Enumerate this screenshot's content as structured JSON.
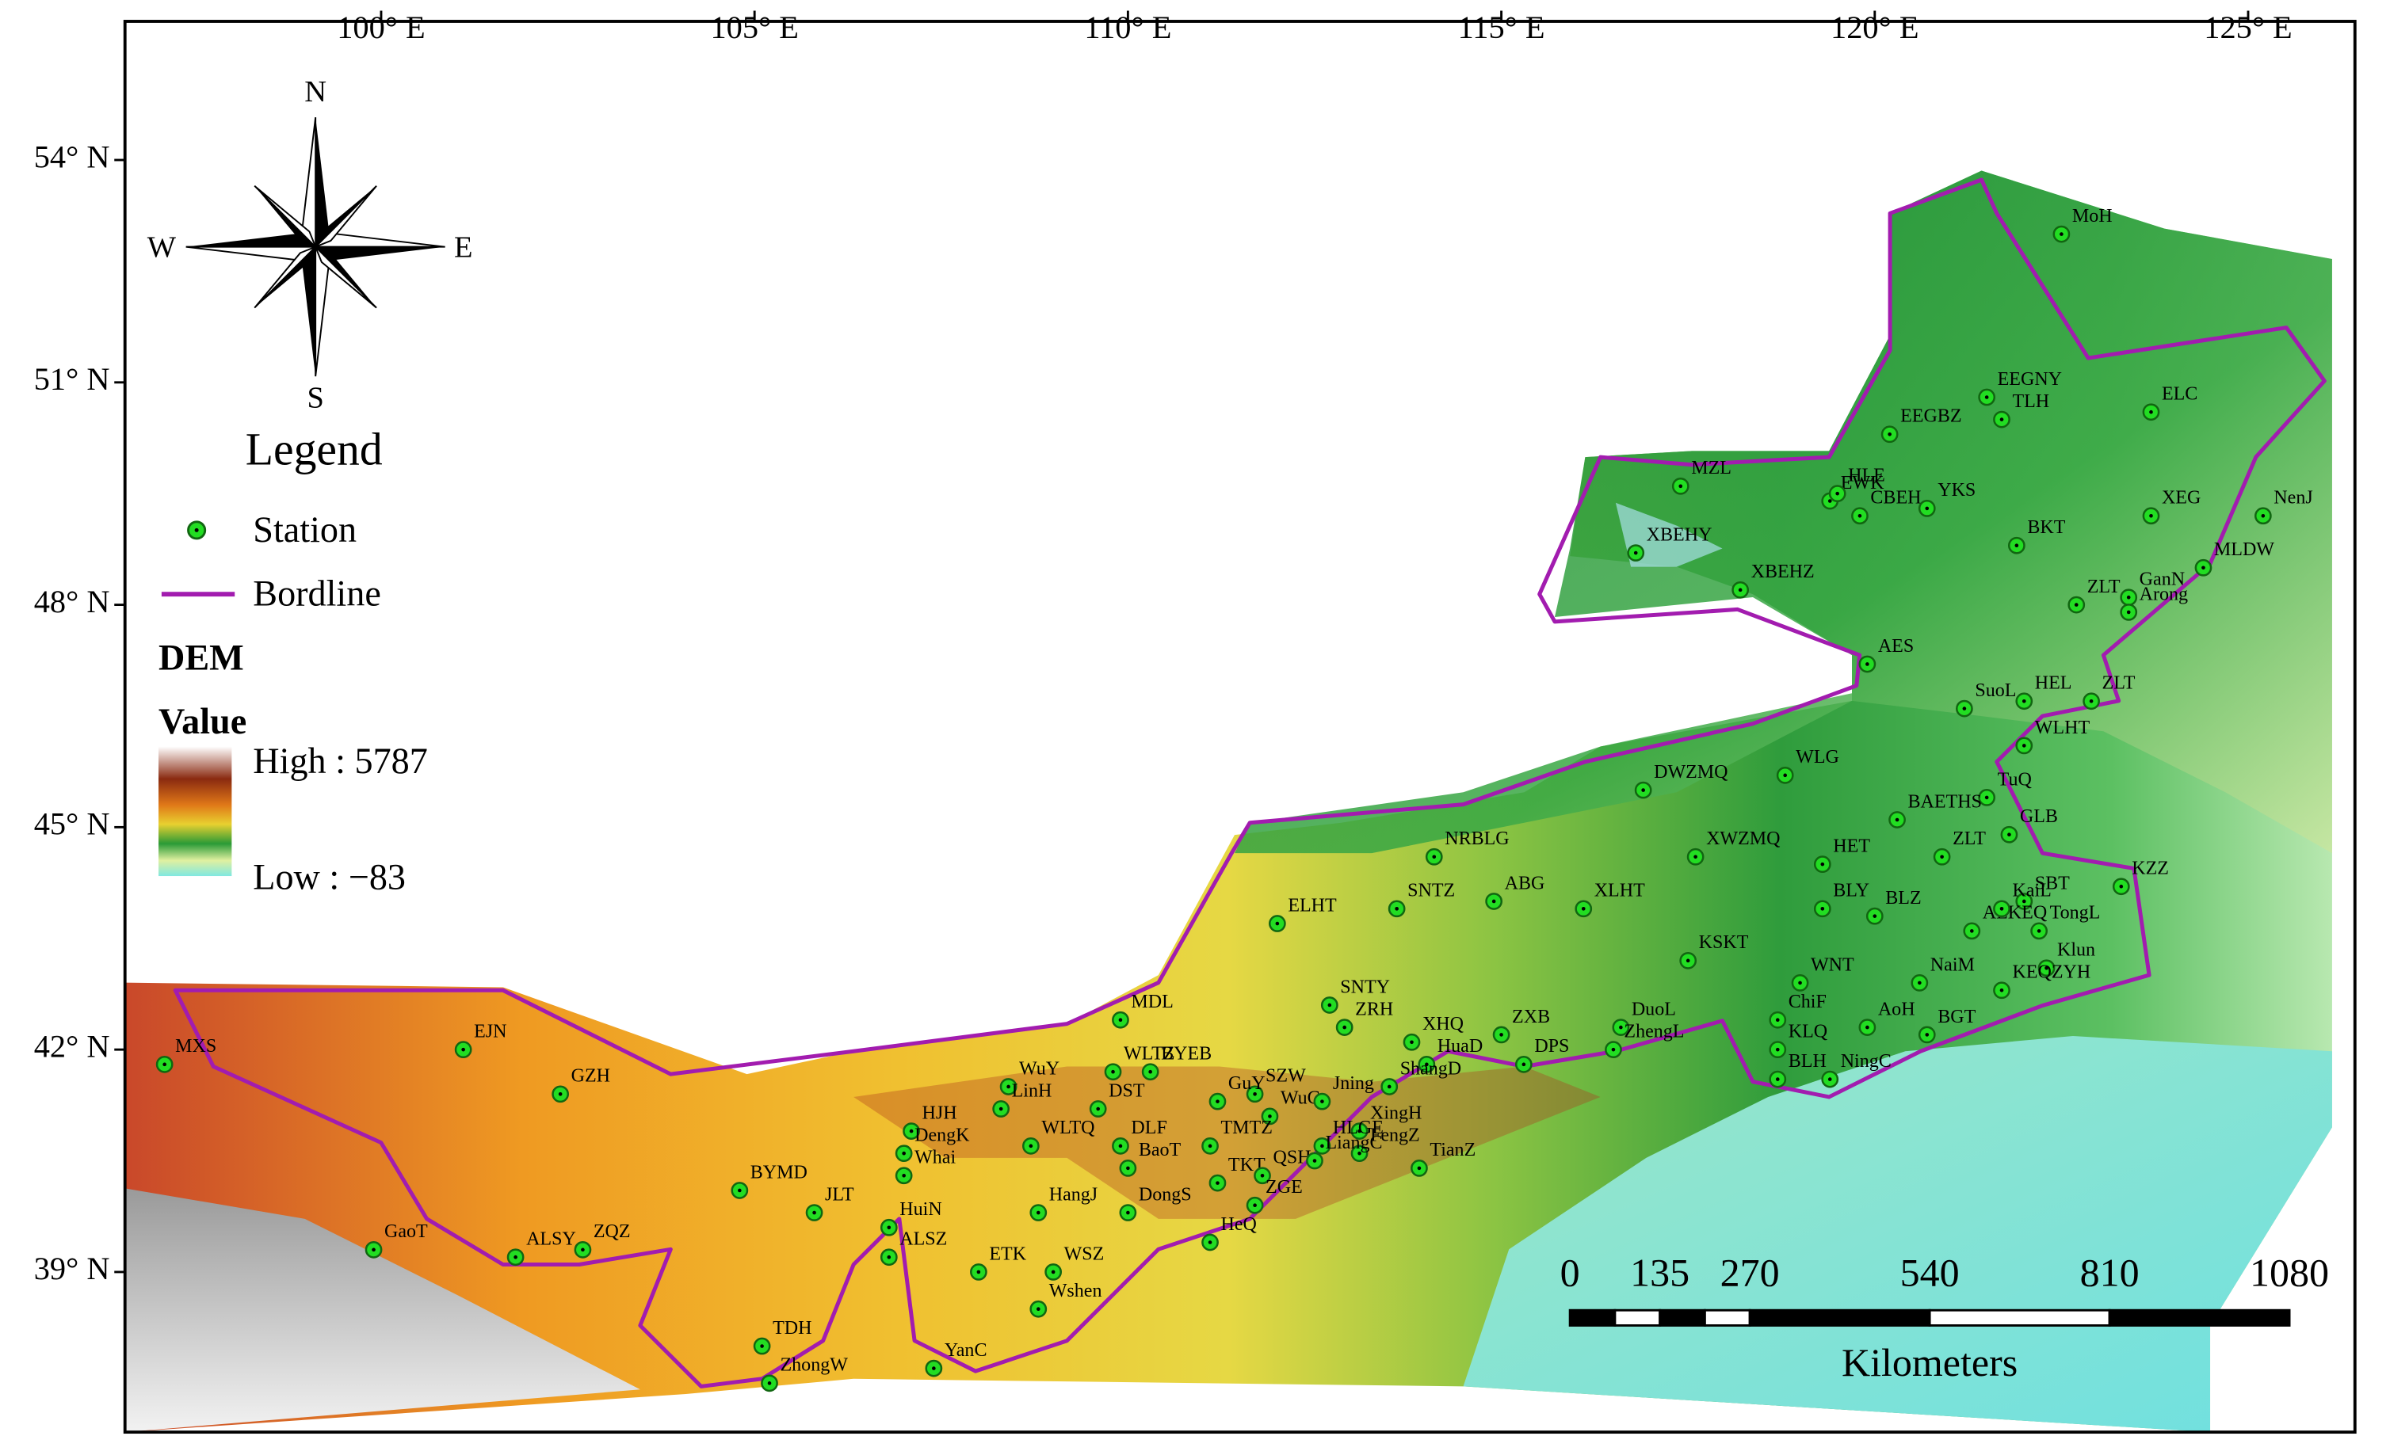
{
  "axes": {
    "xlim": [
      96.57,
      126.43
    ],
    "ylim": [
      36.84,
      55.87
    ],
    "xticks": [
      {
        "value": 100,
        "label": "100° E"
      },
      {
        "value": 105,
        "label": "105° E"
      },
      {
        "value": 110,
        "label": "110° E"
      },
      {
        "value": 115,
        "label": "115° E"
      },
      {
        "value": 120,
        "label": "120° E"
      },
      {
        "value": 125,
        "label": "125° E"
      }
    ],
    "yticks": [
      {
        "value": 54,
        "label": "54° N"
      },
      {
        "value": 51,
        "label": "51° N"
      },
      {
        "value": 48,
        "label": "48° N"
      },
      {
        "value": 45,
        "label": "45° N"
      },
      {
        "value": 42,
        "label": "42° N"
      },
      {
        "value": 39,
        "label": "39° N"
      }
    ]
  },
  "compass": {
    "north": "N",
    "south": "S",
    "east": "E",
    "west": "W"
  },
  "legend": {
    "title": "Legend",
    "station": "Station",
    "border": "Bordline",
    "dem_title": "DEM",
    "dem_subtitle": "Value",
    "high": "High : 5787",
    "low": "Low : −83"
  },
  "scale_bar": {
    "ticks": [
      0,
      135,
      270,
      540,
      810,
      1080
    ],
    "unit": "Kilometers"
  },
  "stations": [
    {
      "name": "MoH",
      "lon": 122.5,
      "lat": 53.0
    },
    {
      "name": "EEGNY",
      "lon": 121.5,
      "lat": 50.8
    },
    {
      "name": "TLH",
      "lon": 121.7,
      "lat": 50.5
    },
    {
      "name": "EEGBZ",
      "lon": 120.2,
      "lat": 50.3
    },
    {
      "name": "ELC",
      "lon": 123.7,
      "lat": 50.6
    },
    {
      "name": "MZL",
      "lon": 117.4,
      "lat": 49.6
    },
    {
      "name": "EWK",
      "lon": 119.4,
      "lat": 49.4
    },
    {
      "name": "HLE",
      "lon": 119.5,
      "lat": 49.5
    },
    {
      "name": "CBEH",
      "lon": 119.8,
      "lat": 49.2
    },
    {
      "name": "YKS",
      "lon": 120.7,
      "lat": 49.3
    },
    {
      "name": "XEG",
      "lon": 123.7,
      "lat": 49.2
    },
    {
      "name": "NenJ",
      "lon": 125.2,
      "lat": 49.2
    },
    {
      "name": "XBEHY",
      "lon": 116.8,
      "lat": 48.7
    },
    {
      "name": "BKT",
      "lon": 121.9,
      "lat": 48.8
    },
    {
      "name": "MLDW",
      "lon": 124.4,
      "lat": 48.5
    },
    {
      "name": "XBEHZ",
      "lon": 118.2,
      "lat": 48.2
    },
    {
      "name": "ZLT",
      "lon": 122.7,
      "lat": 48.0
    },
    {
      "name": "GanN",
      "lon": 123.4,
      "lat": 48.1
    },
    {
      "name": "Arong",
      "lon": 123.4,
      "lat": 47.9
    },
    {
      "name": "AES",
      "lon": 119.9,
      "lat": 47.2
    },
    {
      "name": "SuoL",
      "lon": 121.2,
      "lat": 46.6
    },
    {
      "name": "HEL",
      "lon": 122.0,
      "lat": 46.7
    },
    {
      "name": "ZLT",
      "lon": 122.9,
      "lat": 46.7
    },
    {
      "name": "WLHT",
      "lon": 122.0,
      "lat": 46.1
    },
    {
      "name": "DWZMQ",
      "lon": 116.9,
      "lat": 45.5
    },
    {
      "name": "WLG",
      "lon": 118.8,
      "lat": 45.7
    },
    {
      "name": "TuQ",
      "lon": 121.5,
      "lat": 45.4
    },
    {
      "name": "BAETHS",
      "lon": 120.3,
      "lat": 45.1
    },
    {
      "name": "GLB",
      "lon": 121.8,
      "lat": 44.9
    },
    {
      "name": "XWZMQ",
      "lon": 117.6,
      "lat": 44.6
    },
    {
      "name": "HET",
      "lon": 119.3,
      "lat": 44.5
    },
    {
      "name": "ZLT",
      "lon": 120.9,
      "lat": 44.6
    },
    {
      "name": "NRBLG",
      "lon": 114.1,
      "lat": 44.6
    },
    {
      "name": "KZZ",
      "lon": 123.3,
      "lat": 44.2
    },
    {
      "name": "SBT",
      "lon": 122.0,
      "lat": 44.0
    },
    {
      "name": "ELHT",
      "lon": 112.0,
      "lat": 43.7
    },
    {
      "name": "SNTZ",
      "lon": 113.6,
      "lat": 43.9
    },
    {
      "name": "ABG",
      "lon": 114.9,
      "lat": 44.0
    },
    {
      "name": "XLHT",
      "lon": 116.1,
      "lat": 43.9
    },
    {
      "name": "BLZ",
      "lon": 120.0,
      "lat": 43.8
    },
    {
      "name": "ALKEQ",
      "lon": 121.3,
      "lat": 43.6
    },
    {
      "name": "KaiL",
      "lon": 121.7,
      "lat": 43.9
    },
    {
      "name": "TongL",
      "lon": 122.2,
      "lat": 43.6
    },
    {
      "name": "BLY",
      "lon": 119.3,
      "lat": 43.9
    },
    {
      "name": "KSKT",
      "lon": 117.5,
      "lat": 43.2
    },
    {
      "name": "WNT",
      "lon": 119.0,
      "lat": 42.9
    },
    {
      "name": "NaiM",
      "lon": 120.6,
      "lat": 42.9
    },
    {
      "name": "Klun",
      "lon": 122.3,
      "lat": 43.1
    },
    {
      "name": "KEQZYH",
      "lon": 121.7,
      "lat": 42.8
    },
    {
      "name": "BGT",
      "lon": 120.7,
      "lat": 42.2
    },
    {
      "name": "AoH",
      "lon": 119.9,
      "lat": 42.3
    },
    {
      "name": "ChiF",
      "lon": 118.7,
      "lat": 42.4
    },
    {
      "name": "KLQ",
      "lon": 118.7,
      "lat": 42.0
    },
    {
      "name": "BLH",
      "lon": 118.7,
      "lat": 41.6
    },
    {
      "name": "NingC",
      "lon": 119.4,
      "lat": 41.6
    },
    {
      "name": "MDL",
      "lon": 109.9,
      "lat": 42.4
    },
    {
      "name": "SNTY",
      "lon": 112.7,
      "lat": 42.6
    },
    {
      "name": "ZRH",
      "lon": 112.9,
      "lat": 42.3
    },
    {
      "name": "XHQ",
      "lon": 113.8,
      "lat": 42.1
    },
    {
      "name": "ZXB",
      "lon": 115.0,
      "lat": 42.2
    },
    {
      "name": "DuoL",
      "lon": 116.6,
      "lat": 42.3
    },
    {
      "name": "DPS",
      "lon": 115.3,
      "lat": 41.8
    },
    {
      "name": "ZhengL",
      "lon": 116.5,
      "lat": 42.0
    },
    {
      "name": "HuaD",
      "lon": 114.0,
      "lat": 41.8
    },
    {
      "name": "ShangD",
      "lon": 113.5,
      "lat": 41.5
    },
    {
      "name": "MXS",
      "lon": 97.1,
      "lat": 41.8
    },
    {
      "name": "EJN",
      "lon": 101.1,
      "lat": 42.0
    },
    {
      "name": "GZH",
      "lon": 102.4,
      "lat": 41.4
    },
    {
      "name": "WLTZ",
      "lon": 109.8,
      "lat": 41.7
    },
    {
      "name": "BYEB",
      "lon": 110.3,
      "lat": 41.7
    },
    {
      "name": "WuY",
      "lon": 108.4,
      "lat": 41.5
    },
    {
      "name": "SZW",
      "lon": 111.7,
      "lat": 41.4
    },
    {
      "name": "DST",
      "lon": 109.6,
      "lat": 41.2
    },
    {
      "name": "GuY",
      "lon": 111.2,
      "lat": 41.3
    },
    {
      "name": "HJH",
      "lon": 107.1,
      "lat": 40.9
    },
    {
      "name": "LinH",
      "lon": 108.3,
      "lat": 41.2
    },
    {
      "name": "WuC",
      "lon": 111.9,
      "lat": 41.1
    },
    {
      "name": "Jning",
      "lon": 112.6,
      "lat": 41.3
    },
    {
      "name": "XingH",
      "lon": 113.1,
      "lat": 40.9
    },
    {
      "name": "DengK",
      "lon": 107.0,
      "lat": 40.6
    },
    {
      "name": "WLTQ",
      "lon": 108.7,
      "lat": 40.7
    },
    {
      "name": "TMTZ",
      "lon": 111.1,
      "lat": 40.7
    },
    {
      "name": "DLF",
      "lon": 109.9,
      "lat": 40.7
    },
    {
      "name": "HLGE",
      "lon": 112.6,
      "lat": 40.7
    },
    {
      "name": "FengZ",
      "lon": 113.1,
      "lat": 40.6
    },
    {
      "name": "TianZ",
      "lon": 113.9,
      "lat": 40.4
    },
    {
      "name": "BaoT",
      "lon": 110.0,
      "lat": 40.4
    },
    {
      "name": "TKT",
      "lon": 111.2,
      "lat": 40.2
    },
    {
      "name": "QSH",
      "lon": 111.8,
      "lat": 40.3
    },
    {
      "name": "LiangC",
      "lon": 112.5,
      "lat": 40.5
    },
    {
      "name": "BYMD",
      "lon": 104.8,
      "lat": 40.1
    },
    {
      "name": "Whai",
      "lon": 107.0,
      "lat": 40.3
    },
    {
      "name": "HangJ",
      "lon": 108.8,
      "lat": 39.8
    },
    {
      "name": "ZGE",
      "lon": 111.7,
      "lat": 39.9
    },
    {
      "name": "JLT",
      "lon": 105.8,
      "lat": 39.8
    },
    {
      "name": "DongS",
      "lon": 110.0,
      "lat": 39.8
    },
    {
      "name": "HeQ",
      "lon": 111.1,
      "lat": 39.4
    },
    {
      "name": "HuiN",
      "lon": 106.8,
      "lat": 39.6
    },
    {
      "name": "GaoT",
      "lon": 99.9,
      "lat": 39.3
    },
    {
      "name": "ALSY",
      "lon": 101.8,
      "lat": 39.2
    },
    {
      "name": "ZQZ",
      "lon": 102.7,
      "lat": 39.3
    },
    {
      "name": "ALSZ",
      "lon": 106.8,
      "lat": 39.2
    },
    {
      "name": "ETK",
      "lon": 108.0,
      "lat": 39.0
    },
    {
      "name": "WSZ",
      "lon": 109.0,
      "lat": 39.0
    },
    {
      "name": "Wshen",
      "lon": 108.8,
      "lat": 38.5
    },
    {
      "name": "TDH",
      "lon": 105.1,
      "lat": 38.0
    },
    {
      "name": "ZhongW",
      "lon": 105.2,
      "lat": 37.5
    },
    {
      "name": "YanC",
      "lon": 107.4,
      "lat": 37.7
    }
  ]
}
